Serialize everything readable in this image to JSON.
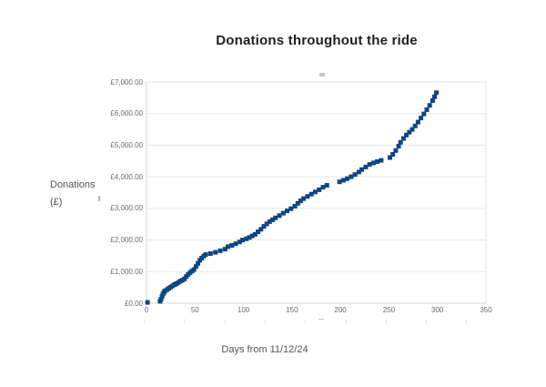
{
  "window": {
    "background": "#ffffff"
  },
  "chart_data": {
    "type": "scatter",
    "title": "Donations throughout the ride",
    "xlabel": "Days from 11/12/24",
    "ylabel": "Donations (£)",
    "ylabel_lines": [
      "Donations",
      "(£)"
    ],
    "legend": "none",
    "grid": "horizontal",
    "marker": "square",
    "point_color": "#0e4681",
    "axis_line_color": "#d6d6d6",
    "gridline_color": "#e7e7e7",
    "xlim": [
      0,
      350
    ],
    "ylim": [
      0,
      7000
    ],
    "x_ticks": [
      0,
      50,
      100,
      150,
      200,
      250,
      300,
      350
    ],
    "x_tick_labels": [
      "0",
      "50",
      "100",
      "150",
      "200",
      "250",
      "300",
      "350"
    ],
    "y_ticks": [
      0,
      1000,
      2000,
      3000,
      4000,
      5000,
      6000,
      7000
    ],
    "y_tick_labels": [
      "£0.00",
      "£1,000.00",
      "£2,000.00",
      "£3,000.00",
      "£4,000.00",
      "£5,000.00",
      "£6,000.00",
      "£7,000.00"
    ],
    "points": [
      [
        1,
        25
      ],
      [
        14,
        60
      ],
      [
        15,
        130
      ],
      [
        16,
        210
      ],
      [
        17,
        290
      ],
      [
        18,
        340
      ],
      [
        19,
        390
      ],
      [
        21,
        430
      ],
      [
        23,
        470
      ],
      [
        25,
        510
      ],
      [
        27,
        550
      ],
      [
        29,
        590
      ],
      [
        31,
        620
      ],
      [
        33,
        660
      ],
      [
        35,
        700
      ],
      [
        37,
        730
      ],
      [
        39,
        770
      ],
      [
        41,
        840
      ],
      [
        43,
        910
      ],
      [
        45,
        970
      ],
      [
        47,
        1020
      ],
      [
        49,
        1070
      ],
      [
        51,
        1160
      ],
      [
        53,
        1260
      ],
      [
        55,
        1360
      ],
      [
        57,
        1430
      ],
      [
        59,
        1490
      ],
      [
        61,
        1540
      ],
      [
        66,
        1570
      ],
      [
        71,
        1610
      ],
      [
        76,
        1660
      ],
      [
        81,
        1710
      ],
      [
        84,
        1790
      ],
      [
        88,
        1830
      ],
      [
        92,
        1880
      ],
      [
        96,
        1940
      ],
      [
        99,
        2000
      ],
      [
        103,
        2040
      ],
      [
        106,
        2080
      ],
      [
        109,
        2130
      ],
      [
        112,
        2180
      ],
      [
        115,
        2260
      ],
      [
        118,
        2340
      ],
      [
        121,
        2430
      ],
      [
        124,
        2510
      ],
      [
        127,
        2580
      ],
      [
        130,
        2640
      ],
      [
        133,
        2700
      ],
      [
        137,
        2770
      ],
      [
        141,
        2850
      ],
      [
        145,
        2920
      ],
      [
        149,
        2990
      ],
      [
        153,
        3070
      ],
      [
        156,
        3160
      ],
      [
        159,
        3240
      ],
      [
        162,
        3310
      ],
      [
        166,
        3380
      ],
      [
        170,
        3450
      ],
      [
        174,
        3520
      ],
      [
        178,
        3590
      ],
      [
        182,
        3670
      ],
      [
        186,
        3730
      ],
      [
        199,
        3840
      ],
      [
        203,
        3890
      ],
      [
        207,
        3940
      ],
      [
        211,
        4000
      ],
      [
        215,
        4070
      ],
      [
        219,
        4150
      ],
      [
        222,
        4230
      ],
      [
        226,
        4310
      ],
      [
        230,
        4390
      ],
      [
        234,
        4440
      ],
      [
        238,
        4480
      ],
      [
        242,
        4520
      ],
      [
        251,
        4610
      ],
      [
        254,
        4710
      ],
      [
        257,
        4830
      ],
      [
        260,
        4970
      ],
      [
        262,
        5090
      ],
      [
        265,
        5210
      ],
      [
        268,
        5320
      ],
      [
        271,
        5410
      ],
      [
        274,
        5500
      ],
      [
        277,
        5610
      ],
      [
        280,
        5730
      ],
      [
        283,
        5860
      ],
      [
        286,
        5990
      ],
      [
        289,
        6120
      ],
      [
        292,
        6260
      ],
      [
        295,
        6410
      ],
      [
        297,
        6530
      ],
      [
        299,
        6660
      ]
    ]
  }
}
